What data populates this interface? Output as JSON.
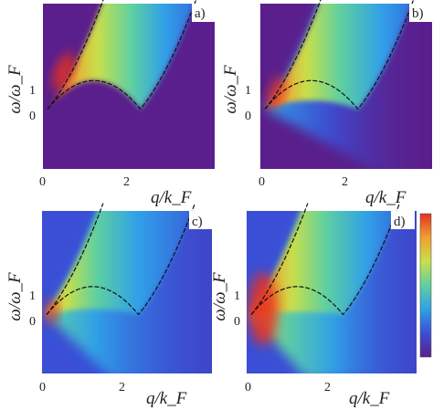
{
  "figure": {
    "y_axis_label": "ω/ω_F",
    "x_axis_label": "q/k_F",
    "panels": [
      {
        "tag": "a)",
        "x_ticks": [
          "0",
          "2"
        ],
        "y_ticks": [
          "0",
          "1"
        ]
      },
      {
        "tag": "b)",
        "x_ticks": [
          "0",
          "2"
        ],
        "y_ticks": [
          "0",
          "1"
        ]
      },
      {
        "tag": "c)",
        "x_ticks": [
          "0",
          "2"
        ],
        "y_ticks": [
          "0",
          "1"
        ]
      },
      {
        "tag": "d)",
        "x_ticks": [
          "0",
          "2"
        ],
        "y_ticks": [
          "0",
          "1"
        ]
      }
    ],
    "colorbar": {
      "colors": [
        "#5a1f8c",
        "#3a4fd6",
        "#2fa0e8",
        "#5fd0a0",
        "#c8e04a",
        "#f0a030",
        "#e63020"
      ]
    },
    "curves": [
      "q^2 + 2q",
      "|q^2 - 2q|"
    ],
    "ranges": {
      "x": [
        -0.1,
        3.6
      ],
      "y": [
        -2.1,
        3.7
      ]
    }
  }
}
